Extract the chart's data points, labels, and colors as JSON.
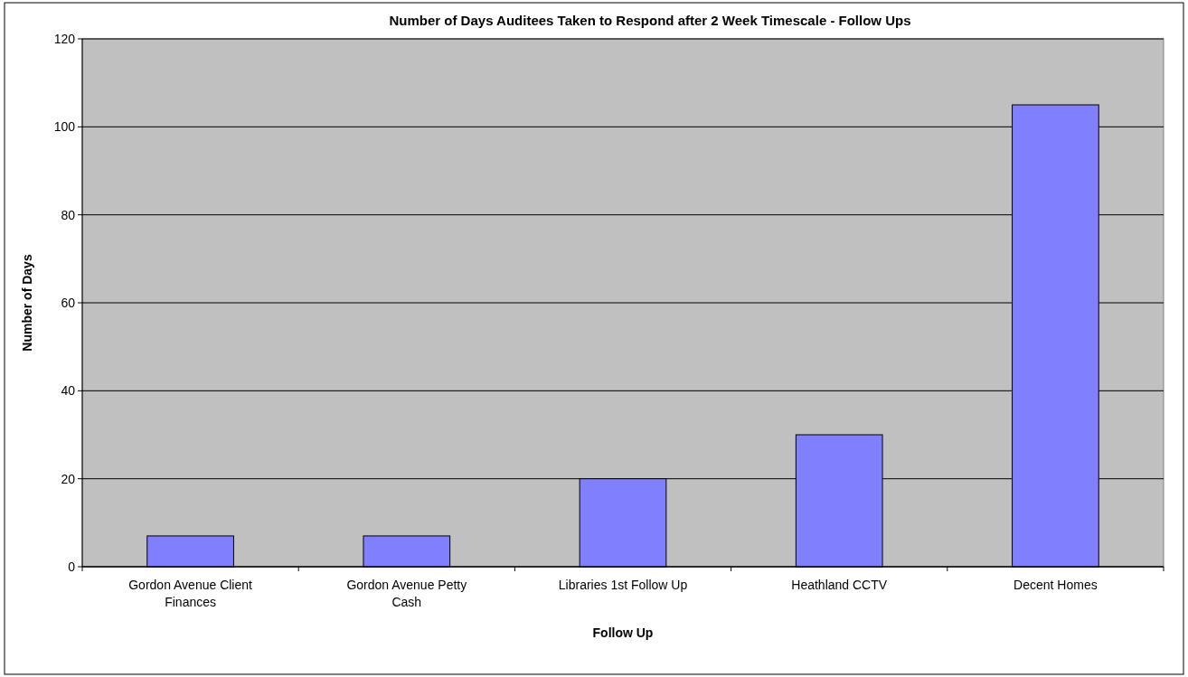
{
  "chart_data": {
    "type": "bar",
    "title": "Number of Days Auditees Taken to Respond after 2 Week Timescale - Follow Ups",
    "xlabel": "Follow Up",
    "ylabel": "Number of Days",
    "categories": [
      "Gordon Avenue Client Finances",
      "Gordon Avenue Petty Cash",
      "Libraries 1st Follow Up",
      "Heathland CCTV",
      "Decent Homes"
    ],
    "values": [
      7,
      7,
      20,
      30,
      105
    ],
    "color": "#8080ff",
    "ylim": [
      0,
      120
    ],
    "yticks": [
      0,
      20,
      40,
      60,
      80,
      100,
      120
    ],
    "grid": "y"
  }
}
